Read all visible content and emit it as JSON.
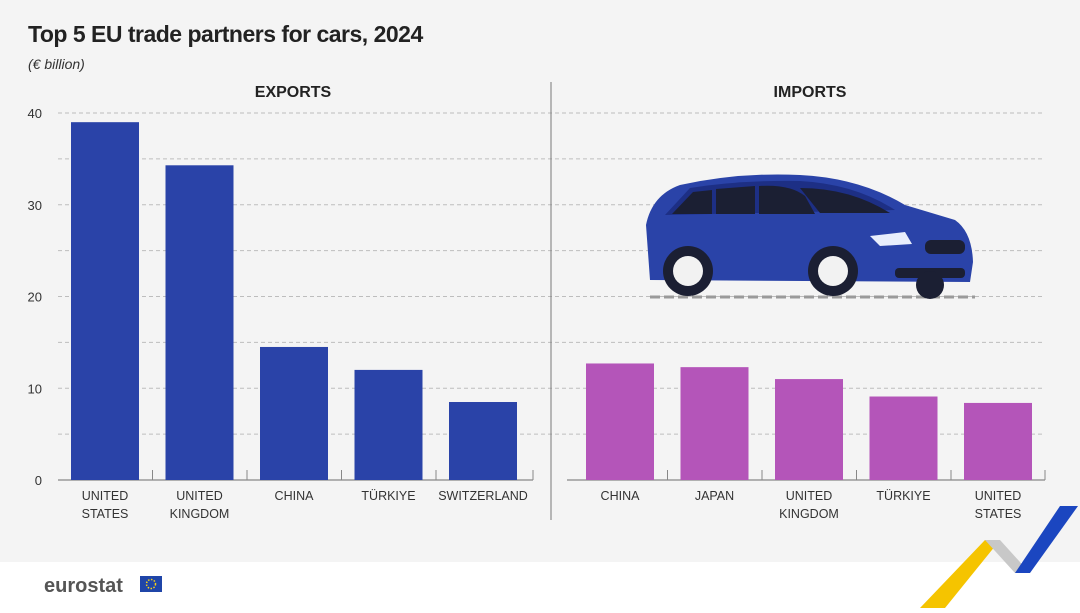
{
  "title": "Top 5 EU trade partners for cars, 2024",
  "subtitle": "(€ billion)",
  "logo_text": "eurostat",
  "colors": {
    "exports": "#2a43a8",
    "imports": "#b455b9",
    "background": "#f4f4f4"
  },
  "chart_data": [
    {
      "type": "bar",
      "title": "EXPORTS",
      "categories": [
        [
          "UNITED",
          "STATES"
        ],
        [
          "UNITED",
          "KINGDOM"
        ],
        [
          "CHINA"
        ],
        [
          "TÜRKIYE"
        ],
        [
          "SWITZERLAND"
        ]
      ],
      "values": [
        39.0,
        34.3,
        14.5,
        12.0,
        8.5
      ],
      "ylim": [
        0,
        40
      ],
      "yticks": [
        "0",
        "10",
        "20",
        "30",
        "40"
      ],
      "grid": true,
      "color": "#2a43a8"
    },
    {
      "type": "bar",
      "title": "IMPORTS",
      "categories": [
        [
          "CHINA"
        ],
        [
          "JAPAN"
        ],
        [
          "UNITED",
          "KINGDOM"
        ],
        [
          "TÜRKIYE"
        ],
        [
          "UNITED",
          "STATES"
        ]
      ],
      "values": [
        12.7,
        12.3,
        11.0,
        9.1,
        8.4
      ],
      "ylim": [
        0,
        40
      ],
      "grid": true,
      "color": "#b455b9"
    }
  ]
}
